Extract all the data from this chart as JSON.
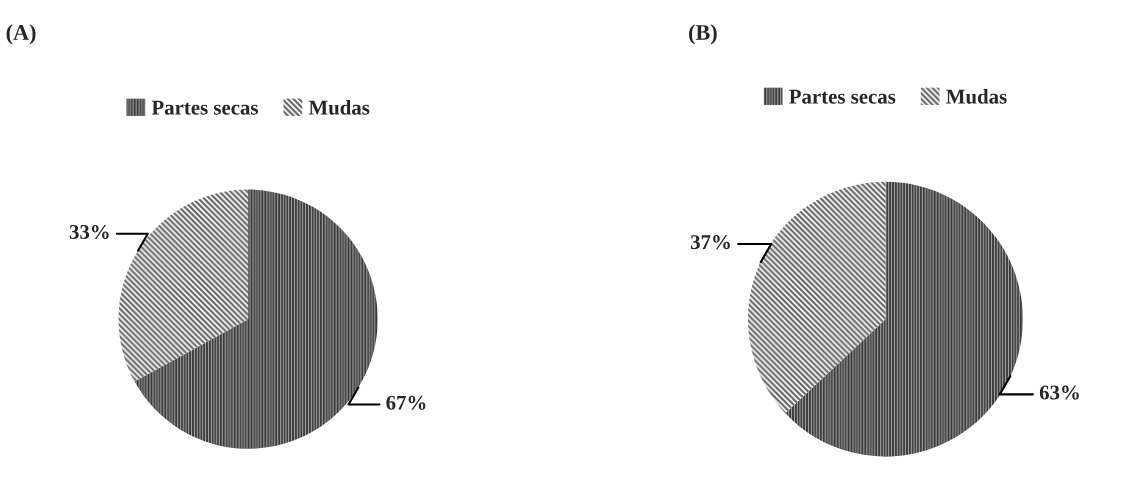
{
  "chart_data": [
    {
      "type": "pie",
      "title": "(A)",
      "categories": [
        "Partes secas",
        "Mudas"
      ],
      "values": [
        67,
        33
      ],
      "colors": [
        "#3a3a3a",
        "#6a6a6a"
      ],
      "value_labels": [
        "67%",
        "33%"
      ],
      "legend": "top"
    },
    {
      "type": "pie",
      "title": "(B)",
      "categories": [
        "Partes secas",
        "Mudas"
      ],
      "values": [
        63,
        37
      ],
      "colors": [
        "#3a3a3a",
        "#6a6a6a"
      ],
      "value_labels": [
        "63%",
        "37%"
      ],
      "legend": "top"
    }
  ]
}
